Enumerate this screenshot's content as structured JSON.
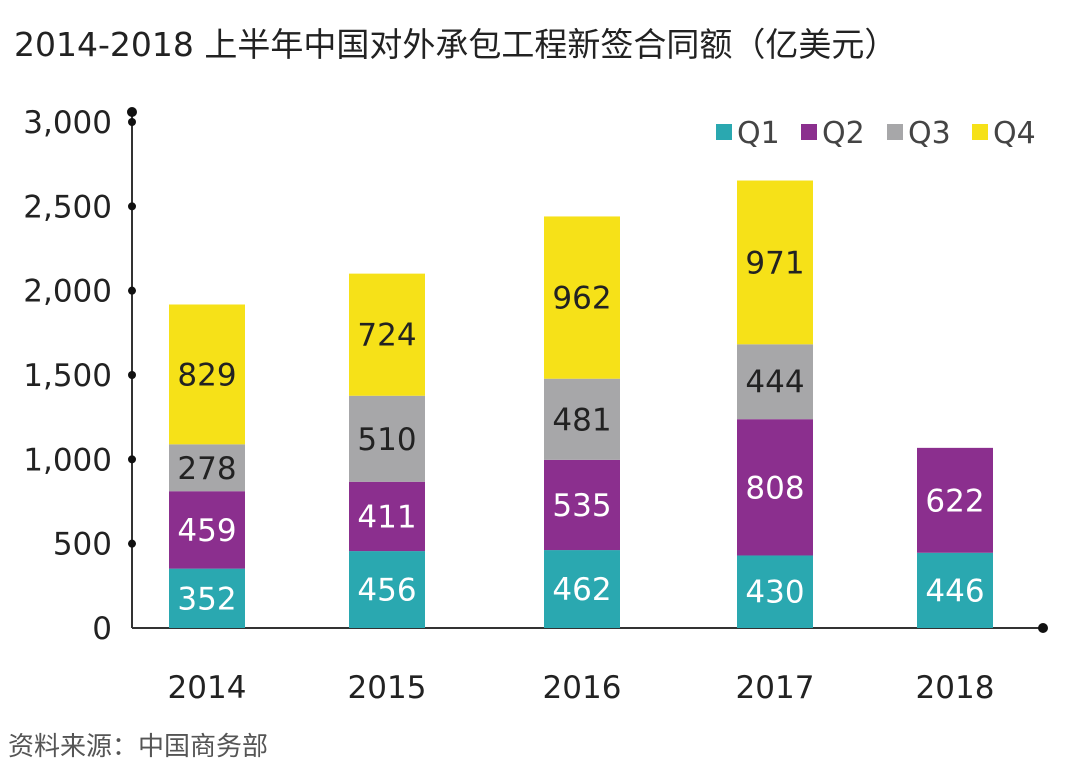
{
  "title": "2014-2018 上半年中国对外承包工程新签合同额（亿美元）",
  "source": "资料来源：中国商务部",
  "chart_data": {
    "type": "bar",
    "stacked": true,
    "title": "2014-2018 上半年中国对外承包工程新签合同额（亿美元）",
    "xlabel": "",
    "ylabel": "",
    "categories": [
      "2014",
      "2015",
      "2016",
      "2017",
      "2018"
    ],
    "ylim": [
      0,
      3000
    ],
    "yticks": [
      0,
      500,
      1000,
      1500,
      2000,
      2500,
      3000
    ],
    "ytick_labels": [
      "0",
      "500",
      "1,000",
      "1,500",
      "2,000",
      "2,500",
      "3,000"
    ],
    "grid": false,
    "legend_position": "top-right",
    "series": [
      {
        "name": "Q1",
        "color": "#2aa8b0",
        "label_color": "#ffffff",
        "values": [
          352,
          456,
          462,
          430,
          446
        ]
      },
      {
        "name": "Q2",
        "color": "#8b2f8e",
        "label_color": "#ffffff",
        "values": [
          459,
          411,
          535,
          808,
          622
        ]
      },
      {
        "name": "Q3",
        "color": "#a7a7a9",
        "label_color": "#222222",
        "values": [
          278,
          510,
          481,
          444,
          null
        ]
      },
      {
        "name": "Q4",
        "color": "#f6e118",
        "label_color": "#222222",
        "values": [
          829,
          724,
          962,
          971,
          null
        ]
      }
    ]
  }
}
